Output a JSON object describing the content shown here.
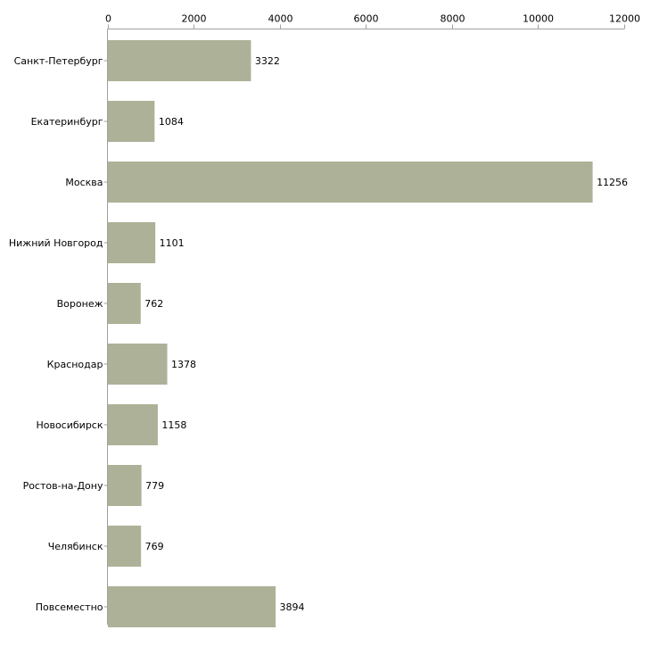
{
  "chart_data": {
    "type": "bar",
    "orientation": "horizontal",
    "title": "",
    "xlabel": "",
    "ylabel": "",
    "xlim": [
      0,
      12000
    ],
    "ticks": [
      0,
      2000,
      4000,
      6000,
      8000,
      10000,
      12000
    ],
    "tick_labels": [
      "0",
      "2000",
      "4000",
      "6000",
      "8000",
      "10000",
      "12000"
    ],
    "axis_position": "top",
    "grid": false,
    "legend": "none",
    "bar_color": "#adb197",
    "axis_color": "#a0a0a0",
    "categories": [
      "Санкт-Петербург",
      "Екатеринбург",
      "Москва",
      "Нижний Новгород",
      "Воронеж",
      "Краснодар",
      "Новосибирск",
      "Ростов-на-Дону",
      "Челябинск",
      "Повсеместно"
    ],
    "values": [
      3322,
      1084,
      11256,
      1101,
      762,
      1378,
      1158,
      779,
      769,
      3894
    ],
    "value_labels": [
      "3322",
      "1084",
      "11256",
      "1101",
      "762",
      "1378",
      "1158",
      "779",
      "769",
      "3894"
    ]
  }
}
